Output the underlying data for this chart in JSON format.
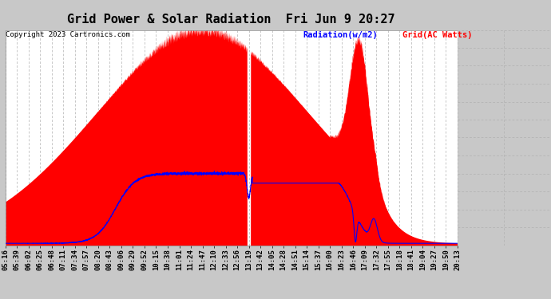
{
  "title": "Grid Power & Solar Radiation  Fri Jun 9 20:27",
  "copyright": "Copyright 2023 Cartronics.com",
  "legend_radiation": "Radiation(w/m2)",
  "legend_grid": "Grid(AC Watts)",
  "bg_color": "#c8c8c8",
  "plot_bg_color": "#ffffff",
  "grid_color": "#b0b0b0",
  "radiation_color": "#ff0000",
  "grid_line_color": "#0000ff",
  "yticks": [
    2658.1,
    2434.7,
    2211.3,
    1987.8,
    1764.4,
    1541.0,
    1317.6,
    1094.1,
    870.7,
    647.3,
    423.8,
    200.4,
    -23.0
  ],
  "xtick_labels": [
    "05:16",
    "05:39",
    "06:02",
    "06:25",
    "06:48",
    "07:11",
    "07:34",
    "07:57",
    "08:20",
    "08:43",
    "09:06",
    "09:29",
    "09:52",
    "10:15",
    "10:38",
    "11:01",
    "11:24",
    "11:47",
    "12:10",
    "12:33",
    "12:56",
    "13:19",
    "13:42",
    "14:05",
    "14:28",
    "14:51",
    "15:14",
    "15:37",
    "16:00",
    "16:23",
    "16:46",
    "17:09",
    "17:32",
    "17:55",
    "18:18",
    "18:41",
    "19:04",
    "19:27",
    "19:50",
    "20:13"
  ],
  "ymin": -23.0,
  "ymax": 2658.1,
  "title_fontsize": 11,
  "axis_fontsize": 6.5,
  "copyright_fontsize": 6.5,
  "legend_fontsize": 7.5
}
